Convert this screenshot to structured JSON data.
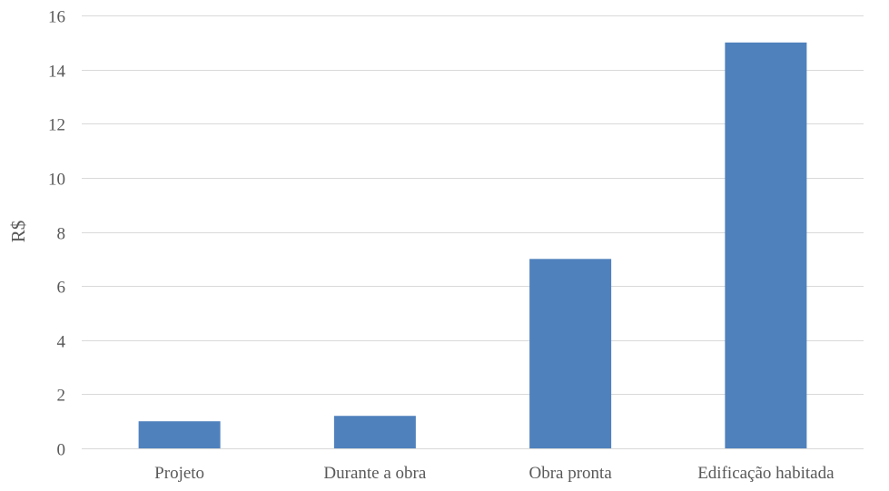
{
  "chart_data": {
    "type": "bar",
    "categories": [
      "Projeto",
      "Durante a obra",
      "Obra pronta",
      "Edificação habitada"
    ],
    "values": [
      1,
      1.2,
      7,
      15
    ],
    "title": "",
    "xlabel": "",
    "ylabel": "R$",
    "ylim": [
      0,
      16
    ],
    "yticks": [
      0,
      2,
      4,
      6,
      8,
      10,
      12,
      14,
      16
    ],
    "grid": true,
    "legend": "none",
    "bar_color": "#4f81bd"
  }
}
